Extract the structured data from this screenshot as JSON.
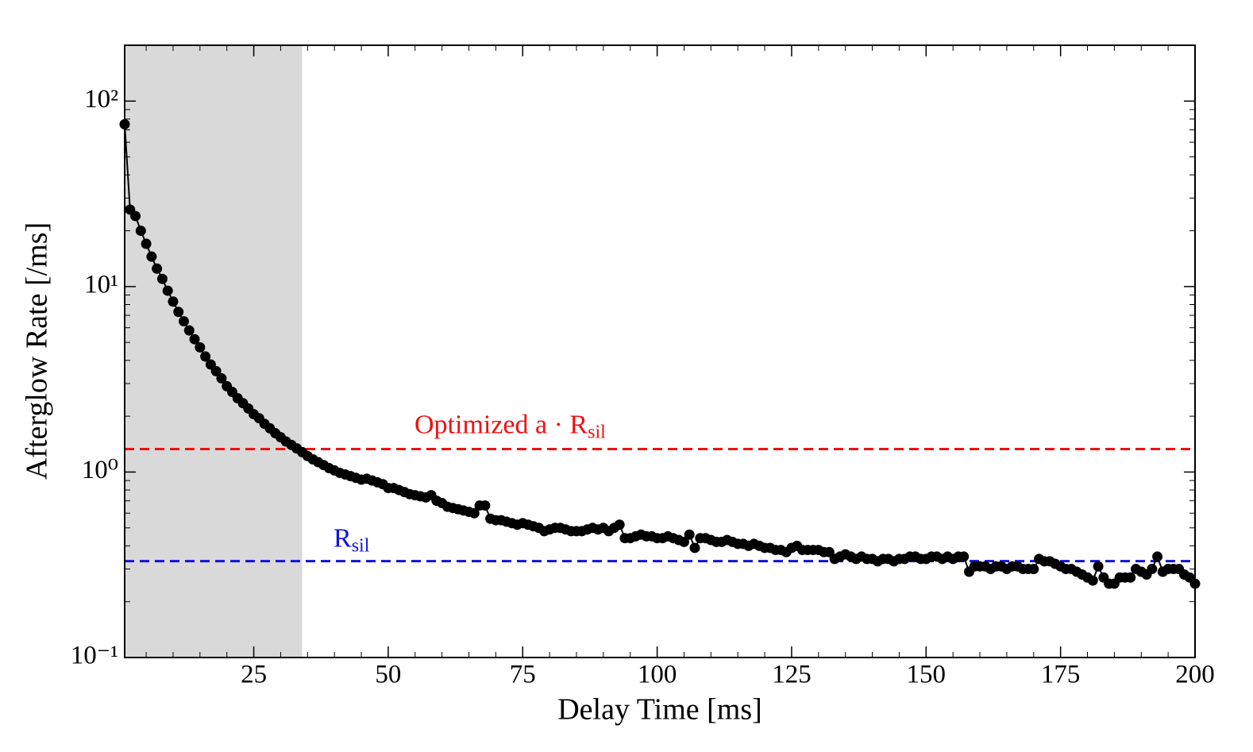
{
  "chart_data": {
    "type": "line",
    "x_label": "Delay Time [ms]",
    "y_label": "Afterglow Rate [/ms]",
    "xlim": [
      1,
      200
    ],
    "ylim": [
      0.1,
      200
    ],
    "log_y": true,
    "xticks": [
      25,
      50,
      75,
      100,
      125,
      150,
      175,
      200
    ],
    "yticks": [
      {
        "value": 0.1,
        "label": "10⁻¹"
      },
      {
        "value": 1,
        "label": "10⁰"
      },
      {
        "value": 10,
        "label": "10¹"
      },
      {
        "value": 100,
        "label": "10²"
      }
    ],
    "shaded_region": [
      1,
      34
    ],
    "shade_color": "#d9d9d9",
    "hlines": [
      {
        "label": "Optimized a · R",
        "subscript": "sil",
        "value": 1.33,
        "color": "#ee1111"
      },
      {
        "label": "R",
        "subscript": "sil",
        "value": 0.331,
        "color": "#1111dd"
      }
    ],
    "series": [
      {
        "color": "#000000",
        "x": [
          1,
          2,
          3,
          4,
          5,
          6,
          7,
          8,
          9,
          10,
          11,
          12,
          13,
          14,
          15,
          16,
          17,
          18,
          19,
          20,
          21,
          22,
          23,
          24,
          25,
          26,
          27,
          28,
          29,
          30,
          31,
          32,
          33,
          34,
          35,
          36,
          37,
          38,
          39,
          40,
          41,
          42,
          43,
          44,
          45,
          46,
          47,
          48,
          49,
          50,
          51,
          52,
          53,
          54,
          55,
          56,
          57,
          58,
          59,
          60,
          61,
          62,
          63,
          64,
          65,
          66,
          67,
          68,
          69,
          70,
          71,
          72,
          73,
          74,
          75,
          76,
          77,
          78,
          79,
          80,
          81,
          82,
          83,
          84,
          85,
          86,
          87,
          88,
          89,
          90,
          91,
          92,
          93,
          94,
          95,
          96,
          97,
          98,
          99,
          100,
          101,
          102,
          103,
          104,
          105,
          106,
          107,
          108,
          109,
          110,
          111,
          112,
          113,
          114,
          115,
          116,
          117,
          118,
          119,
          120,
          121,
          122,
          123,
          124,
          125,
          126,
          127,
          128,
          129,
          130,
          131,
          132,
          133,
          134,
          135,
          136,
          137,
          138,
          139,
          140,
          141,
          142,
          143,
          144,
          145,
          146,
          147,
          148,
          149,
          150,
          151,
          152,
          153,
          154,
          155,
          156,
          157,
          158,
          159,
          160,
          161,
          162,
          163,
          164,
          165,
          166,
          167,
          168,
          169,
          170,
          171,
          172,
          173,
          174,
          175,
          176,
          177,
          178,
          179,
          180,
          181,
          182,
          183,
          184,
          185,
          186,
          187,
          188,
          189,
          190,
          191,
          192,
          193,
          194,
          195,
          196,
          197,
          198,
          199,
          200
        ],
        "values": [
          75,
          26,
          24,
          20,
          17,
          14.5,
          12.5,
          11,
          9.5,
          8.3,
          7.3,
          6.5,
          5.8,
          5.2,
          4.7,
          4.2,
          3.8,
          3.5,
          3.2,
          2.9,
          2.7,
          2.5,
          2.35,
          2.2,
          2.05,
          1.95,
          1.82,
          1.72,
          1.62,
          1.54,
          1.46,
          1.4,
          1.34,
          1.28,
          1.22,
          1.17,
          1.13,
          1.09,
          1.05,
          1.02,
          0.99,
          0.97,
          0.95,
          0.93,
          0.91,
          0.92,
          0.9,
          0.88,
          0.86,
          0.82,
          0.82,
          0.8,
          0.78,
          0.76,
          0.75,
          0.74,
          0.73,
          0.75,
          0.7,
          0.68,
          0.65,
          0.64,
          0.63,
          0.62,
          0.61,
          0.6,
          0.66,
          0.66,
          0.56,
          0.55,
          0.55,
          0.54,
          0.53,
          0.52,
          0.53,
          0.52,
          0.51,
          0.5,
          0.48,
          0.49,
          0.5,
          0.5,
          0.49,
          0.48,
          0.48,
          0.48,
          0.49,
          0.5,
          0.49,
          0.5,
          0.48,
          0.5,
          0.52,
          0.44,
          0.44,
          0.45,
          0.46,
          0.45,
          0.45,
          0.44,
          0.44,
          0.45,
          0.44,
          0.43,
          0.42,
          0.46,
          0.39,
          0.44,
          0.44,
          0.43,
          0.42,
          0.42,
          0.43,
          0.42,
          0.41,
          0.41,
          0.4,
          0.41,
          0.4,
          0.39,
          0.39,
          0.38,
          0.38,
          0.37,
          0.39,
          0.4,
          0.38,
          0.38,
          0.38,
          0.38,
          0.37,
          0.37,
          0.34,
          0.35,
          0.36,
          0.35,
          0.34,
          0.35,
          0.34,
          0.34,
          0.33,
          0.34,
          0.34,
          0.33,
          0.34,
          0.34,
          0.35,
          0.35,
          0.34,
          0.34,
          0.35,
          0.35,
          0.34,
          0.35,
          0.34,
          0.35,
          0.35,
          0.29,
          0.31,
          0.31,
          0.31,
          0.3,
          0.31,
          0.31,
          0.3,
          0.31,
          0.31,
          0.3,
          0.3,
          0.3,
          0.34,
          0.33,
          0.33,
          0.32,
          0.31,
          0.3,
          0.3,
          0.29,
          0.28,
          0.27,
          0.26,
          0.31,
          0.27,
          0.25,
          0.25,
          0.27,
          0.27,
          0.27,
          0.3,
          0.29,
          0.28,
          0.3,
          0.35,
          0.29,
          0.3,
          0.3,
          0.3,
          0.28,
          0.27,
          0.25
        ]
      }
    ]
  }
}
